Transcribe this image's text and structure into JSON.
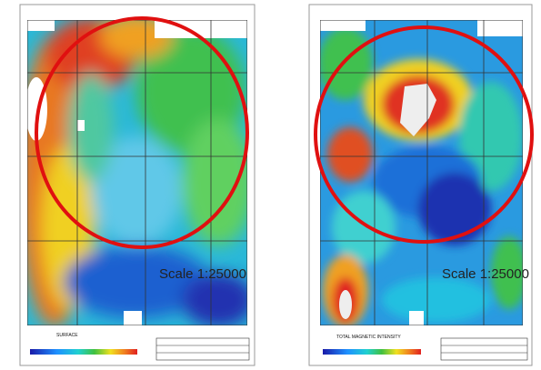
{
  "panels": [
    {
      "title": "SURFACE",
      "scale": "Scale 1:25000"
    },
    {
      "title": "TOTAL MAGNETIC INTENSITY",
      "scale": "Scale 1:25000"
    }
  ]
}
